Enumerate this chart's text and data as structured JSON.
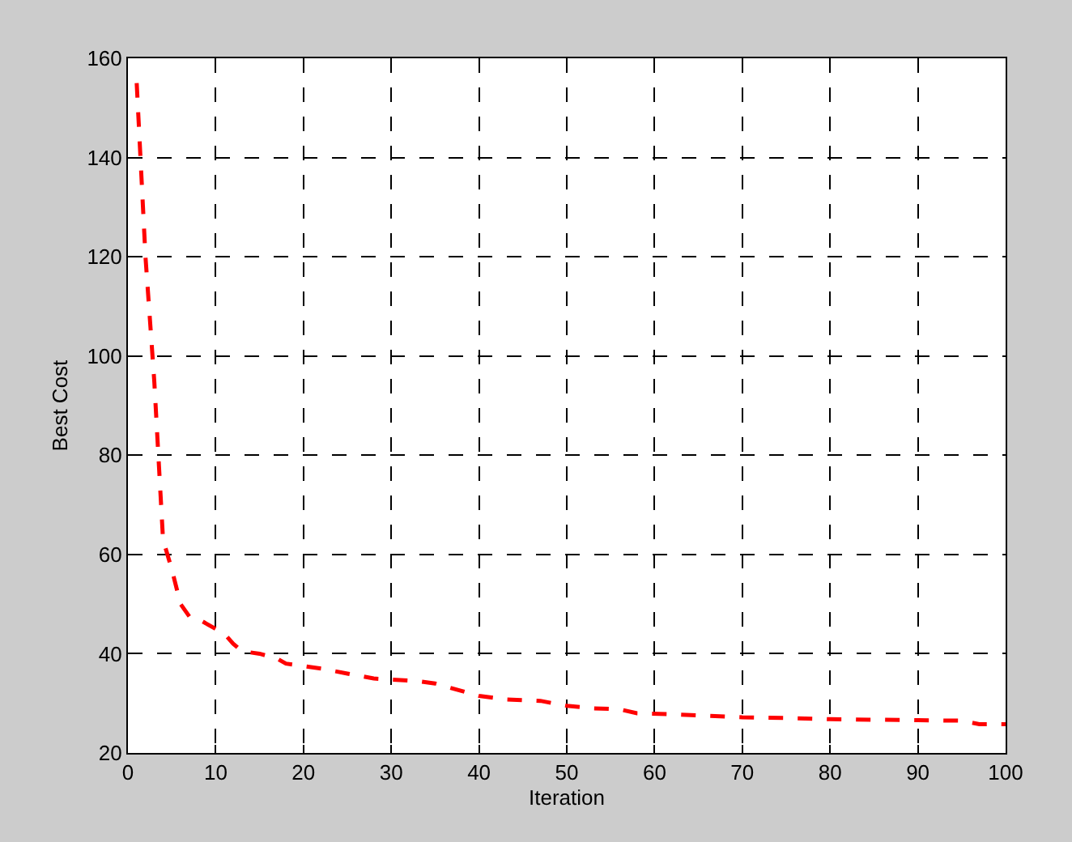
{
  "chart_data": {
    "type": "line",
    "xlabel": "Iteration",
    "ylabel": "Best Cost",
    "xlim": [
      0,
      100
    ],
    "ylim": [
      20,
      160
    ],
    "xticks": [
      0,
      10,
      20,
      30,
      40,
      50,
      60,
      70,
      80,
      90,
      100
    ],
    "yticks": [
      20,
      40,
      60,
      80,
      100,
      120,
      140,
      160
    ],
    "grid": true,
    "line_style": "dashed",
    "marker": "none",
    "x": [
      1,
      2,
      3,
      4,
      5,
      6,
      7,
      8,
      10,
      11,
      12,
      13,
      15,
      17,
      18,
      20,
      22,
      25,
      28,
      33,
      35,
      38,
      40,
      43,
      47,
      50,
      53,
      56,
      58,
      62,
      66,
      70,
      76,
      80,
      90,
      95,
      97,
      100
    ],
    "series": [
      {
        "color": "#ff0000",
        "values": [
          155,
          120,
          95,
          63,
          57,
          50,
          47.5,
          47,
          45,
          44,
          42,
          40.5,
          40,
          39,
          38,
          37.5,
          37,
          36,
          35,
          34.5,
          34,
          32.5,
          31.5,
          30.8,
          30.5,
          29.5,
          29,
          28.8,
          28,
          27.8,
          27.5,
          27.2,
          27,
          26.8,
          26.6,
          26.5,
          25.8,
          25.8
        ]
      }
    ]
  }
}
